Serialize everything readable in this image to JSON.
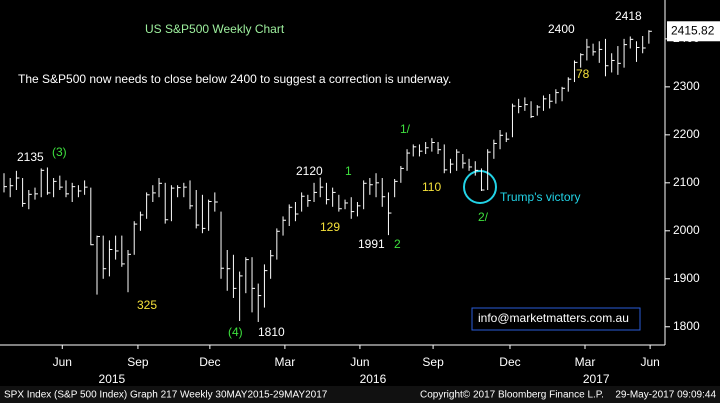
{
  "chart_data": {
    "type": "ohlc",
    "title": "US S&P500 Weekly Chart",
    "subtitle": "The S&P500 now needs to close below 2400 to suggest a correction is underway.",
    "color": "#ffffff",
    "high": [
      2120,
      2110,
      2125,
      2110,
      2085,
      2090,
      2130,
      2132,
      2110,
      2115,
      2105,
      2100,
      2095,
      2105,
      2090,
      1990,
      1990,
      1980,
      1990,
      1990,
      1960,
      2020,
      2040,
      2080,
      2095,
      2110,
      2100,
      2095,
      2095,
      2100,
      2105,
      2085,
      2075,
      2065,
      2080,
      2040,
      1960,
      1950,
      1915,
      1945,
      1945,
      1890,
      1930,
      1960,
      2005,
      2030,
      2055,
      2060,
      2080,
      2075,
      2100,
      2111,
      2100,
      2090,
      2075,
      2065,
      2070,
      2060,
      2105,
      2110,
      2120,
      2110,
      2080,
      2108,
      2135,
      2170,
      2180,
      2180,
      2185,
      2193,
      2185,
      2180,
      2150,
      2170,
      2160,
      2150,
      2145,
      2130,
      2170,
      2190,
      2210,
      2205,
      2265,
      2275,
      2278,
      2270,
      2262,
      2282,
      2285,
      2295,
      2300,
      2320,
      2355,
      2370,
      2400,
      2390,
      2395,
      2400,
      2370,
      2385,
      2400,
      2405,
      2395,
      2406,
      2418
    ],
    "low": [
      2080,
      2070,
      2085,
      2050,
      2045,
      2065,
      2070,
      2075,
      2070,
      2085,
      2070,
      2060,
      2070,
      2075,
      1970,
      1867,
      1900,
      1905,
      1940,
      1925,
      1872,
      1950,
      2000,
      2025,
      2060,
      2070,
      2015,
      2020,
      2070,
      2070,
      2045,
      2005,
      1995,
      2000,
      2040,
      1900,
      1875,
      1860,
      1812,
      1870,
      1830,
      1810,
      1840,
      1900,
      1940,
      1990,
      2010,
      2020,
      2040,
      2050,
      2060,
      2070,
      2055,
      2050,
      2040,
      2045,
      2025,
      2030,
      2045,
      2075,
      2070,
      2050,
      1991,
      2070,
      2100,
      2125,
      2155,
      2155,
      2160,
      2165,
      2160,
      2120,
      2120,
      2125,
      2130,
      2125,
      2115,
      2083,
      2085,
      2150,
      2170,
      2185,
      2195,
      2245,
      2250,
      2235,
      2240,
      2250,
      2255,
      2265,
      2270,
      2290,
      2310,
      2340,
      2355,
      2365,
      2350,
      2322,
      2330,
      2325,
      2340,
      2380,
      2352,
      2370,
      2390
    ],
    "close": [
      2092,
      2094,
      2110,
      2057,
      2076,
      2077,
      2126,
      2079,
      2103,
      2091,
      2077,
      2092,
      2083,
      2091,
      1971,
      1988,
      1921,
      1961,
      1958,
      1931,
      1951,
      2014,
      2033,
      2075,
      2079,
      2099,
      2023,
      2089,
      2090,
      2091,
      2052,
      2012,
      2005,
      2061,
      2060,
      1922,
      1921,
      1880,
      1906,
      1940,
      1880,
      1865,
      1917,
      1948,
      1999,
      2022,
      2049,
      2035,
      2072,
      2063,
      2080,
      2091,
      2065,
      2080,
      2046,
      2058,
      2040,
      2052,
      2099,
      2096,
      2100,
      2071,
      2037,
      2103,
      2130,
      2162,
      2175,
      2166,
      2173,
      2184,
      2169,
      2127,
      2139,
      2164,
      2141,
      2133,
      2126,
      2085,
      2164,
      2182,
      2199,
      2191,
      2260,
      2259,
      2263,
      2238,
      2258,
      2275,
      2270,
      2288,
      2297,
      2316,
      2351,
      2367,
      2383,
      2373,
      2378,
      2344,
      2355,
      2349,
      2388,
      2399,
      2382,
      2381,
      2415.82
    ],
    "xlim": [
      -0.645,
      106.6
    ],
    "xticks": [
      {
        "value": 9.4,
        "label": "Jun"
      },
      {
        "value": 21.6,
        "label": "Sep"
      },
      {
        "value": 33.2,
        "label": "Dec"
      },
      {
        "value": 45.3,
        "label": "Mar"
      },
      {
        "value": 57.4,
        "label": "Jun"
      },
      {
        "value": 69.2,
        "label": "Sep"
      },
      {
        "value": 81.6,
        "label": "Dec"
      },
      {
        "value": 93.7,
        "label": "Mar"
      },
      {
        "value": 104.2,
        "label": "Jun"
      }
    ],
    "year_ticks": [
      {
        "value": 17.4,
        "label": "2015"
      },
      {
        "value": 59.5,
        "label": "2016"
      },
      {
        "value": 95.5,
        "label": "2017"
      }
    ],
    "ylim": [
      1762,
      2481
    ],
    "yticks": [
      1800,
      1900,
      2000,
      2100,
      2200,
      2300,
      2400
    ],
    "annotations": [
      "2135",
      "(3)",
      "325",
      "(4)",
      "1810",
      "2120",
      "1",
      "129",
      "1991",
      "2",
      "1/",
      "110",
      "2/",
      "Trump's victory",
      "2400",
      "2418",
      "78"
    ],
    "watermark": "info@marketmatters.com.au",
    "footer": [
      "SPX Index (S&P 500 Index) Graph 217  Weekly 30MAY2015-29MAY2017",
      "Copyright© 2017 Bloomberg Finance L.P.",
      "29-May-2017 09:09:44"
    ]
  }
}
